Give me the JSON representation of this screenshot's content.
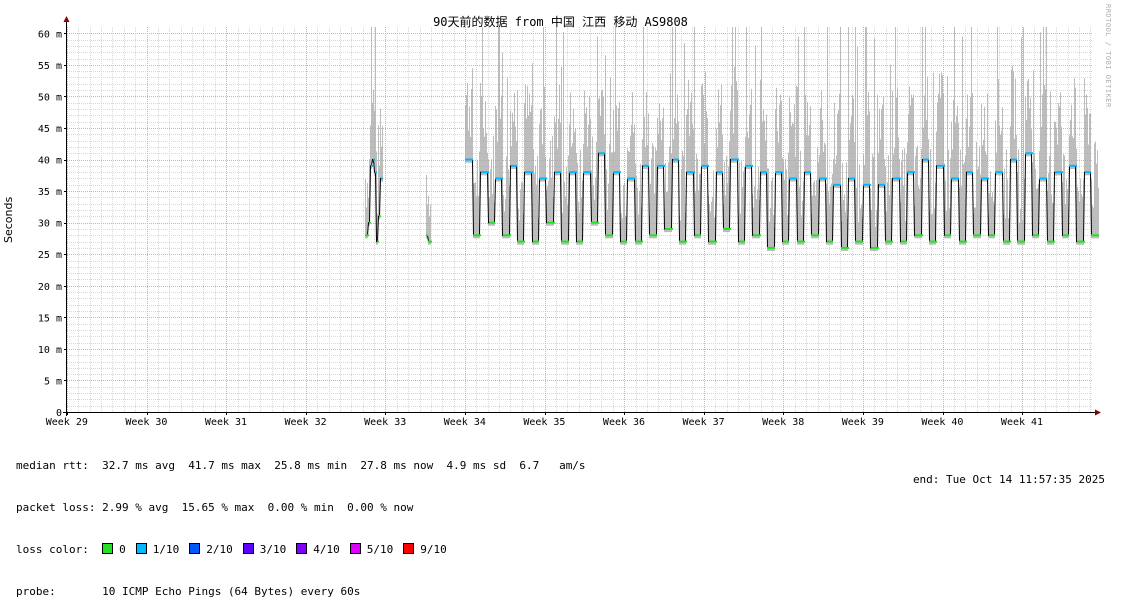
{
  "chart_data": {
    "type": "line",
    "title": "90天前的数据 from 中国 江西 移动 AS9808",
    "ylabel": "Seconds",
    "xlabel": "",
    "y_unit_suffix": "m",
    "ylim": [
      0,
      0.061
    ],
    "yticks": [
      {
        "value": 0,
        "label": "0"
      },
      {
        "value": 0.005,
        "label": "5 m"
      },
      {
        "value": 0.01,
        "label": "10 m"
      },
      {
        "value": 0.015,
        "label": "15 m"
      },
      {
        "value": 0.02,
        "label": "20 m"
      },
      {
        "value": 0.025,
        "label": "25 m"
      },
      {
        "value": 0.03,
        "label": "30 m"
      },
      {
        "value": 0.035,
        "label": "35 m"
      },
      {
        "value": 0.04,
        "label": "40 m"
      },
      {
        "value": 0.045,
        "label": "45 m"
      },
      {
        "value": 0.05,
        "label": "50 m"
      },
      {
        "value": 0.055,
        "label": "55 m"
      },
      {
        "value": 0.06,
        "label": "60 m"
      }
    ],
    "x_categories": [
      "Week 29",
      "Week 30",
      "Week 31",
      "Week 32",
      "Week 33",
      "Week 34",
      "Week 35",
      "Week 36",
      "Week 37",
      "Week 38",
      "Week 39",
      "Week 40",
      "Week 41"
    ],
    "grid": true,
    "median_rtt_ms": {
      "segments": [
        {
          "start_week": 32.75,
          "end_week": 32.95,
          "values": [
            28,
            30,
            39,
            40,
            38,
            27,
            31,
            37
          ]
        },
        {
          "start_week": 33.52,
          "end_week": 33.55,
          "values": [
            28,
            27,
            27
          ]
        },
        {
          "start_week": 34.0,
          "end_week": 41.95,
          "values": [
            40,
            28,
            38,
            30,
            37,
            28,
            39,
            27,
            38,
            27,
            37,
            30,
            38,
            27,
            38,
            27,
            38,
            30,
            41,
            28,
            38,
            27,
            37,
            27,
            39,
            28,
            39,
            29,
            40,
            27,
            38,
            28,
            39,
            27,
            38,
            29,
            40,
            27,
            39,
            28,
            38,
            26,
            38,
            27,
            37,
            27,
            38,
            28,
            37,
            27,
            36,
            26,
            37,
            27,
            36,
            26,
            36,
            27,
            37,
            27,
            38,
            28,
            40,
            27,
            39,
            28,
            37,
            27,
            38,
            28,
            37,
            28,
            38,
            27,
            40,
            27,
            41,
            28,
            37,
            27,
            38,
            28,
            39,
            27,
            38,
            28
          ]
        }
      ]
    },
    "series": [
      {
        "name": "0",
        "color": "#26e026"
      },
      {
        "name": "1/10",
        "color": "#00b8ff"
      },
      {
        "name": "2/10",
        "color": "#0059ff"
      },
      {
        "name": "3/10",
        "color": "#5e00ff"
      },
      {
        "name": "4/10",
        "color": "#7e00ff"
      },
      {
        "name": "5/10",
        "color": "#dd00ff"
      },
      {
        "name": "9/10",
        "color": "#ff0000"
      }
    ]
  },
  "stats": {
    "median_label": "median rtt:",
    "median_values": "32.7 ms avg  41.7 ms max  25.8 ms min  27.8 ms now  4.9 ms sd  6.7   am/s",
    "loss_label": "packet loss:",
    "loss_values": "2.99 % avg  15.65 % max  0.00 % min  0.00 % now",
    "color_label": "loss color:",
    "probe_label": "probe:",
    "probe_value": "10 ICMP Echo Pings (64 Bytes) every 60s",
    "end_label": "end: Tue Oct 14 11:57:35 2025"
  },
  "watermark": "RRDTOOL / TOBI OETIKER",
  "colors": {
    "grid_major": "#ff9e9e",
    "grid_minor": "#d8d8d8",
    "smoke": "#a8a8a8",
    "median_line": "#000000"
  }
}
